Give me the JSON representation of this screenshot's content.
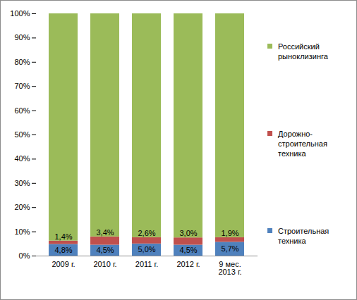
{
  "chart_data": {
    "type": "bar",
    "stacked": true,
    "categories": [
      "2009 г.",
      "2010 г.",
      "2011 г.",
      "2012 г.",
      "9 мес.\n2013 г."
    ],
    "series": [
      {
        "name": "Строительная техника",
        "color": "#4f81bd",
        "values": [
          4.8,
          4.5,
          5.0,
          4.5,
          5.7
        ],
        "value_labels": [
          "4,8%",
          "4,5%",
          "5,0%",
          "4,5%",
          "5,7%"
        ],
        "data_labels": true
      },
      {
        "name": "Дорожно-строительная техника",
        "color": "#c0504d",
        "values": [
          1.4,
          3.4,
          2.6,
          3.0,
          1.9
        ],
        "value_labels": [
          "1,4%",
          "3,4%",
          "2,6%",
          "3,0%",
          "1,9%"
        ],
        "data_labels": true
      },
      {
        "name": "Российский рыноклизинга",
        "color": "#9bbb59",
        "values": [
          93.8,
          92.1,
          92.4,
          92.5,
          92.4
        ],
        "data_labels": false
      }
    ],
    "ylim": [
      0,
      100
    ],
    "yticks": [
      {
        "value": 0,
        "label": "0%"
      },
      {
        "value": 10,
        "label": "10%"
      },
      {
        "value": 20,
        "label": "20%"
      },
      {
        "value": 30,
        "label": "30%"
      },
      {
        "value": 40,
        "label": "40%"
      },
      {
        "value": 50,
        "label": "50%"
      },
      {
        "value": 60,
        "label": "60%"
      },
      {
        "value": 70,
        "label": "70%"
      },
      {
        "value": 80,
        "label": "80%"
      },
      {
        "value": 90,
        "label": "90%"
      },
      {
        "value": 100,
        "label": "100%"
      }
    ],
    "grid": false,
    "legend": "right"
  }
}
